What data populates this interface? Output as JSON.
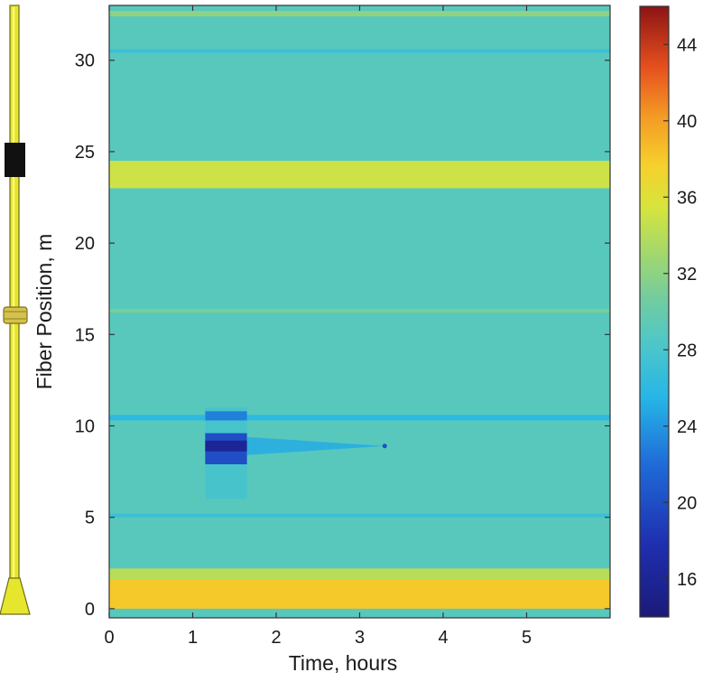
{
  "chart_data": {
    "type": "heatmap",
    "title": "",
    "xlabel": "Time, hours",
    "ylabel": "Fiber Position, m",
    "xlim": [
      0,
      6
    ],
    "ylim": [
      -0.5,
      33
    ],
    "x_ticks": [
      0,
      1,
      2,
      3,
      4,
      5
    ],
    "y_ticks": [
      0,
      5,
      10,
      15,
      20,
      25,
      30
    ],
    "background_value": 29,
    "horizontal_bands": [
      {
        "y_from": 0.0,
        "y_to": 1.6,
        "value": 38
      },
      {
        "y_from": 1.6,
        "y_to": 2.2,
        "value": 34
      },
      {
        "y_from": 23.0,
        "y_to": 24.5,
        "value": 35
      },
      {
        "y_from": 16.2,
        "y_to": 16.4,
        "value": 31
      },
      {
        "y_from": 32.4,
        "y_to": 32.7,
        "value": 32
      },
      {
        "y_from": 10.3,
        "y_to": 10.6,
        "value": 26
      },
      {
        "y_from": 30.4,
        "y_to": 30.6,
        "value": 27
      },
      {
        "y_from": 5.0,
        "y_to": 5.2,
        "value": 27
      }
    ],
    "cold_spot": {
      "time_start": 1.15,
      "time_end": 1.65,
      "position": 8.9,
      "value": 16,
      "tail_end_time": 3.3,
      "tail_end_value": 25
    },
    "colorbar": {
      "ticks": [
        16,
        20,
        24,
        28,
        32,
        36,
        40,
        44
      ],
      "range": [
        14,
        46
      ],
      "colormap": "jet"
    },
    "legend": "none",
    "grid": false
  },
  "well_schematic": {
    "tube_color": "#e6e62e",
    "packer_color": "#111111",
    "coupling_color": "#d4c24a"
  }
}
